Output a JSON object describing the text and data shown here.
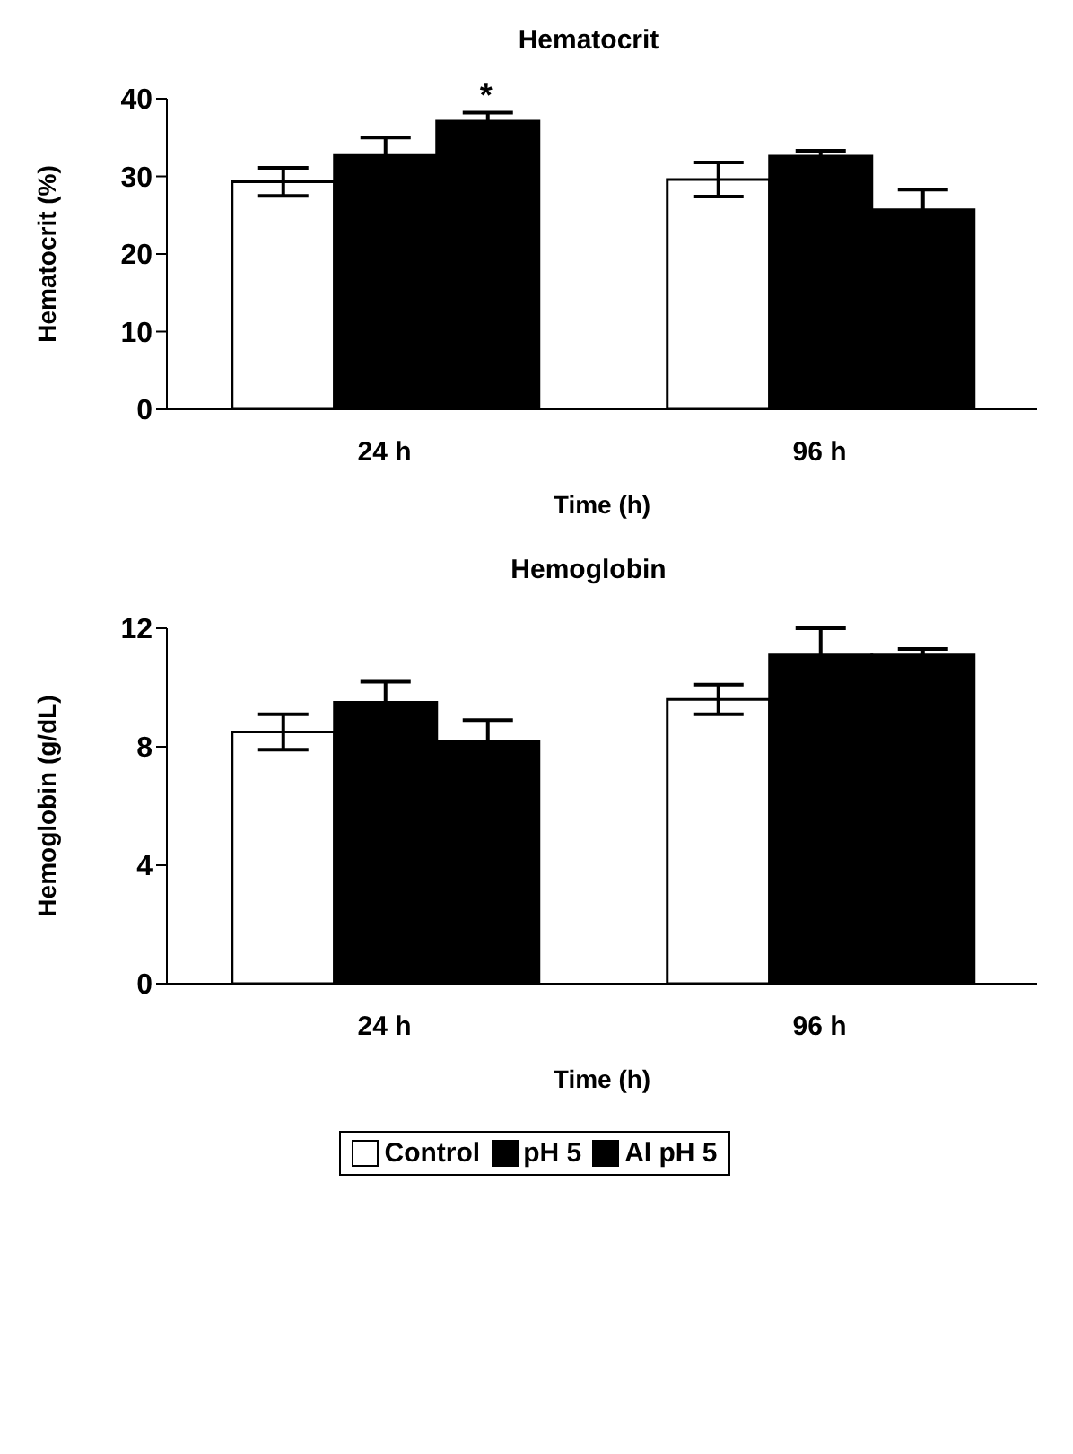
{
  "chart_data": [
    {
      "type": "bar",
      "title": "Hematocrit",
      "xlabel": "Time (h)",
      "ylabel": "Hematocrit (%)",
      "categories": [
        "24 h",
        "96 h"
      ],
      "series": [
        {
          "color": "#ffffff",
          "values": [
            29.3,
            29.6
          ],
          "errors": [
            1.8,
            2.2
          ]
        },
        {
          "color": "#000000",
          "values": [
            32.7,
            32.6
          ],
          "errors": [
            2.3,
            0.7
          ]
        },
        {
          "color": "#000000",
          "values": [
            37.1,
            25.7
          ],
          "errors": [
            1.1,
            2.6
          ]
        }
      ],
      "annotations": [
        "*"
      ],
      "ylim": [
        0,
        40
      ],
      "yticks": [
        0,
        10,
        20,
        30,
        40
      ],
      "grid": false,
      "legend": false
    },
    {
      "type": "bar",
      "title": "Hemoglobin",
      "xlabel": "Time (h)",
      "ylabel": "Hemoglobin (g/dL)",
      "categories": [
        "24 h",
        "96 h"
      ],
      "series": [
        {
          "name": "Control",
          "color": "#ffffff",
          "values": [
            8.5,
            9.6
          ],
          "errors": [
            0.6,
            0.5
          ]
        },
        {
          "name": "pH 5",
          "color": "#000000",
          "values": [
            9.5,
            11.1
          ],
          "errors": [
            0.7,
            0.9
          ]
        },
        {
          "name": "Al pH 5",
          "color": "#000000",
          "values": [
            8.2,
            11.1
          ],
          "errors": [
            0.7,
            0.2
          ]
        }
      ],
      "ylim": [
        0,
        12
      ],
      "yticks": [
        0,
        4,
        8,
        12
      ],
      "grid": false,
      "legend": "bottom"
    }
  ]
}
